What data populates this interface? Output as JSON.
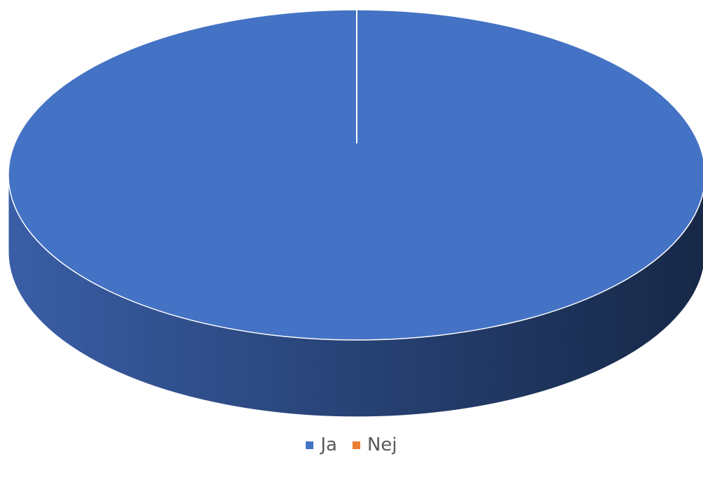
{
  "chart_data": {
    "type": "pie",
    "style": "3d",
    "categories": [
      "Ja",
      "Nej"
    ],
    "values": [
      100,
      0
    ],
    "colors": [
      "#4472C4",
      "#ED7D31"
    ],
    "title": "",
    "legend_position": "bottom"
  },
  "legend": {
    "items": [
      {
        "label": "Ja",
        "color": "#4472C4"
      },
      {
        "label": "Nej",
        "color": "#ED7D31"
      }
    ]
  }
}
